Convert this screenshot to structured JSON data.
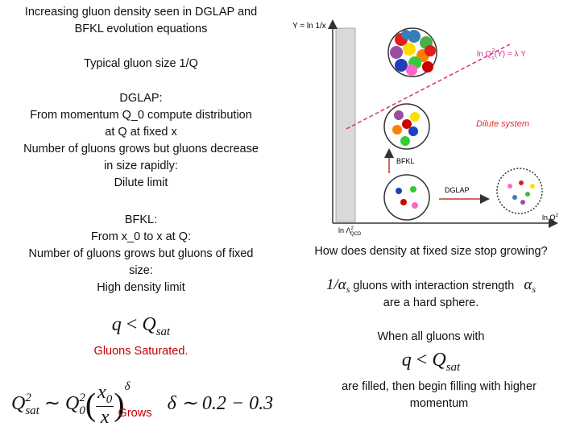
{
  "left": {
    "intro": [
      "Increasing gluon density seen in DGLAP and",
      "BFKL evolution equations"
    ],
    "typical": "Typical gluon size 1/Q",
    "dglap": [
      "DGLAP:",
      "From momentum Q_0 compute distribution",
      "at Q at fixed x",
      "Number of gluons grows but gluons decrease",
      "in size rapidly:",
      "Dilute limit"
    ],
    "bfkl": [
      "BFKL:",
      "From x_0  to x at Q:",
      "Number of gluons grows but gluons of fixed",
      "size:",
      "High density limit"
    ],
    "saturation_condition": {
      "q": "q",
      "rel": "<",
      "Q": "Q",
      "sub": "sat"
    },
    "saturated": "Gluons Saturated.",
    "saturation_scale": {
      "Q": "Q",
      "sup": "2",
      "sub": "sat",
      "rel": "∼",
      "Q0": "Q",
      "Q0_sup": "2",
      "Q0_sub": "0",
      "num": "x",
      "num_sub": "0",
      "den": "x",
      "exp": "δ",
      "range": "δ ∼ 0.2 − 0.3"
    },
    "grows": "Grows"
  },
  "diagram": {
    "y_axis": "Y = ln 1/x",
    "saturation_line": {
      "prefix": "ln Q",
      "sup": "2",
      "sub": "s",
      "suffix": "(Y) = λ Y"
    },
    "dilute": "Dilute system",
    "bfkl": "BFKL",
    "dglap": "DGLAP",
    "x_axis_start": {
      "text": "ln Λ",
      "sup": "2",
      "sub": "QCD"
    },
    "x_axis": {
      "text": "ln Q",
      "sup": "2"
    }
  },
  "right": {
    "question": "How does density at fixed size stop growing?",
    "alpha_line": {
      "prefix": "1/α",
      "prefix_sub": "s",
      "text": " gluons with interaction strength ",
      "alpha": "α",
      "alpha_sub": "s"
    },
    "hard_sphere": "are a hard sphere.",
    "when": "When all gluons with",
    "saturation_condition": {
      "q": "q",
      "rel": "<",
      "Q": "Q",
      "sub": "sat"
    },
    "filled": [
      "are filled, then begin filling with higher",
      "momentum"
    ]
  }
}
